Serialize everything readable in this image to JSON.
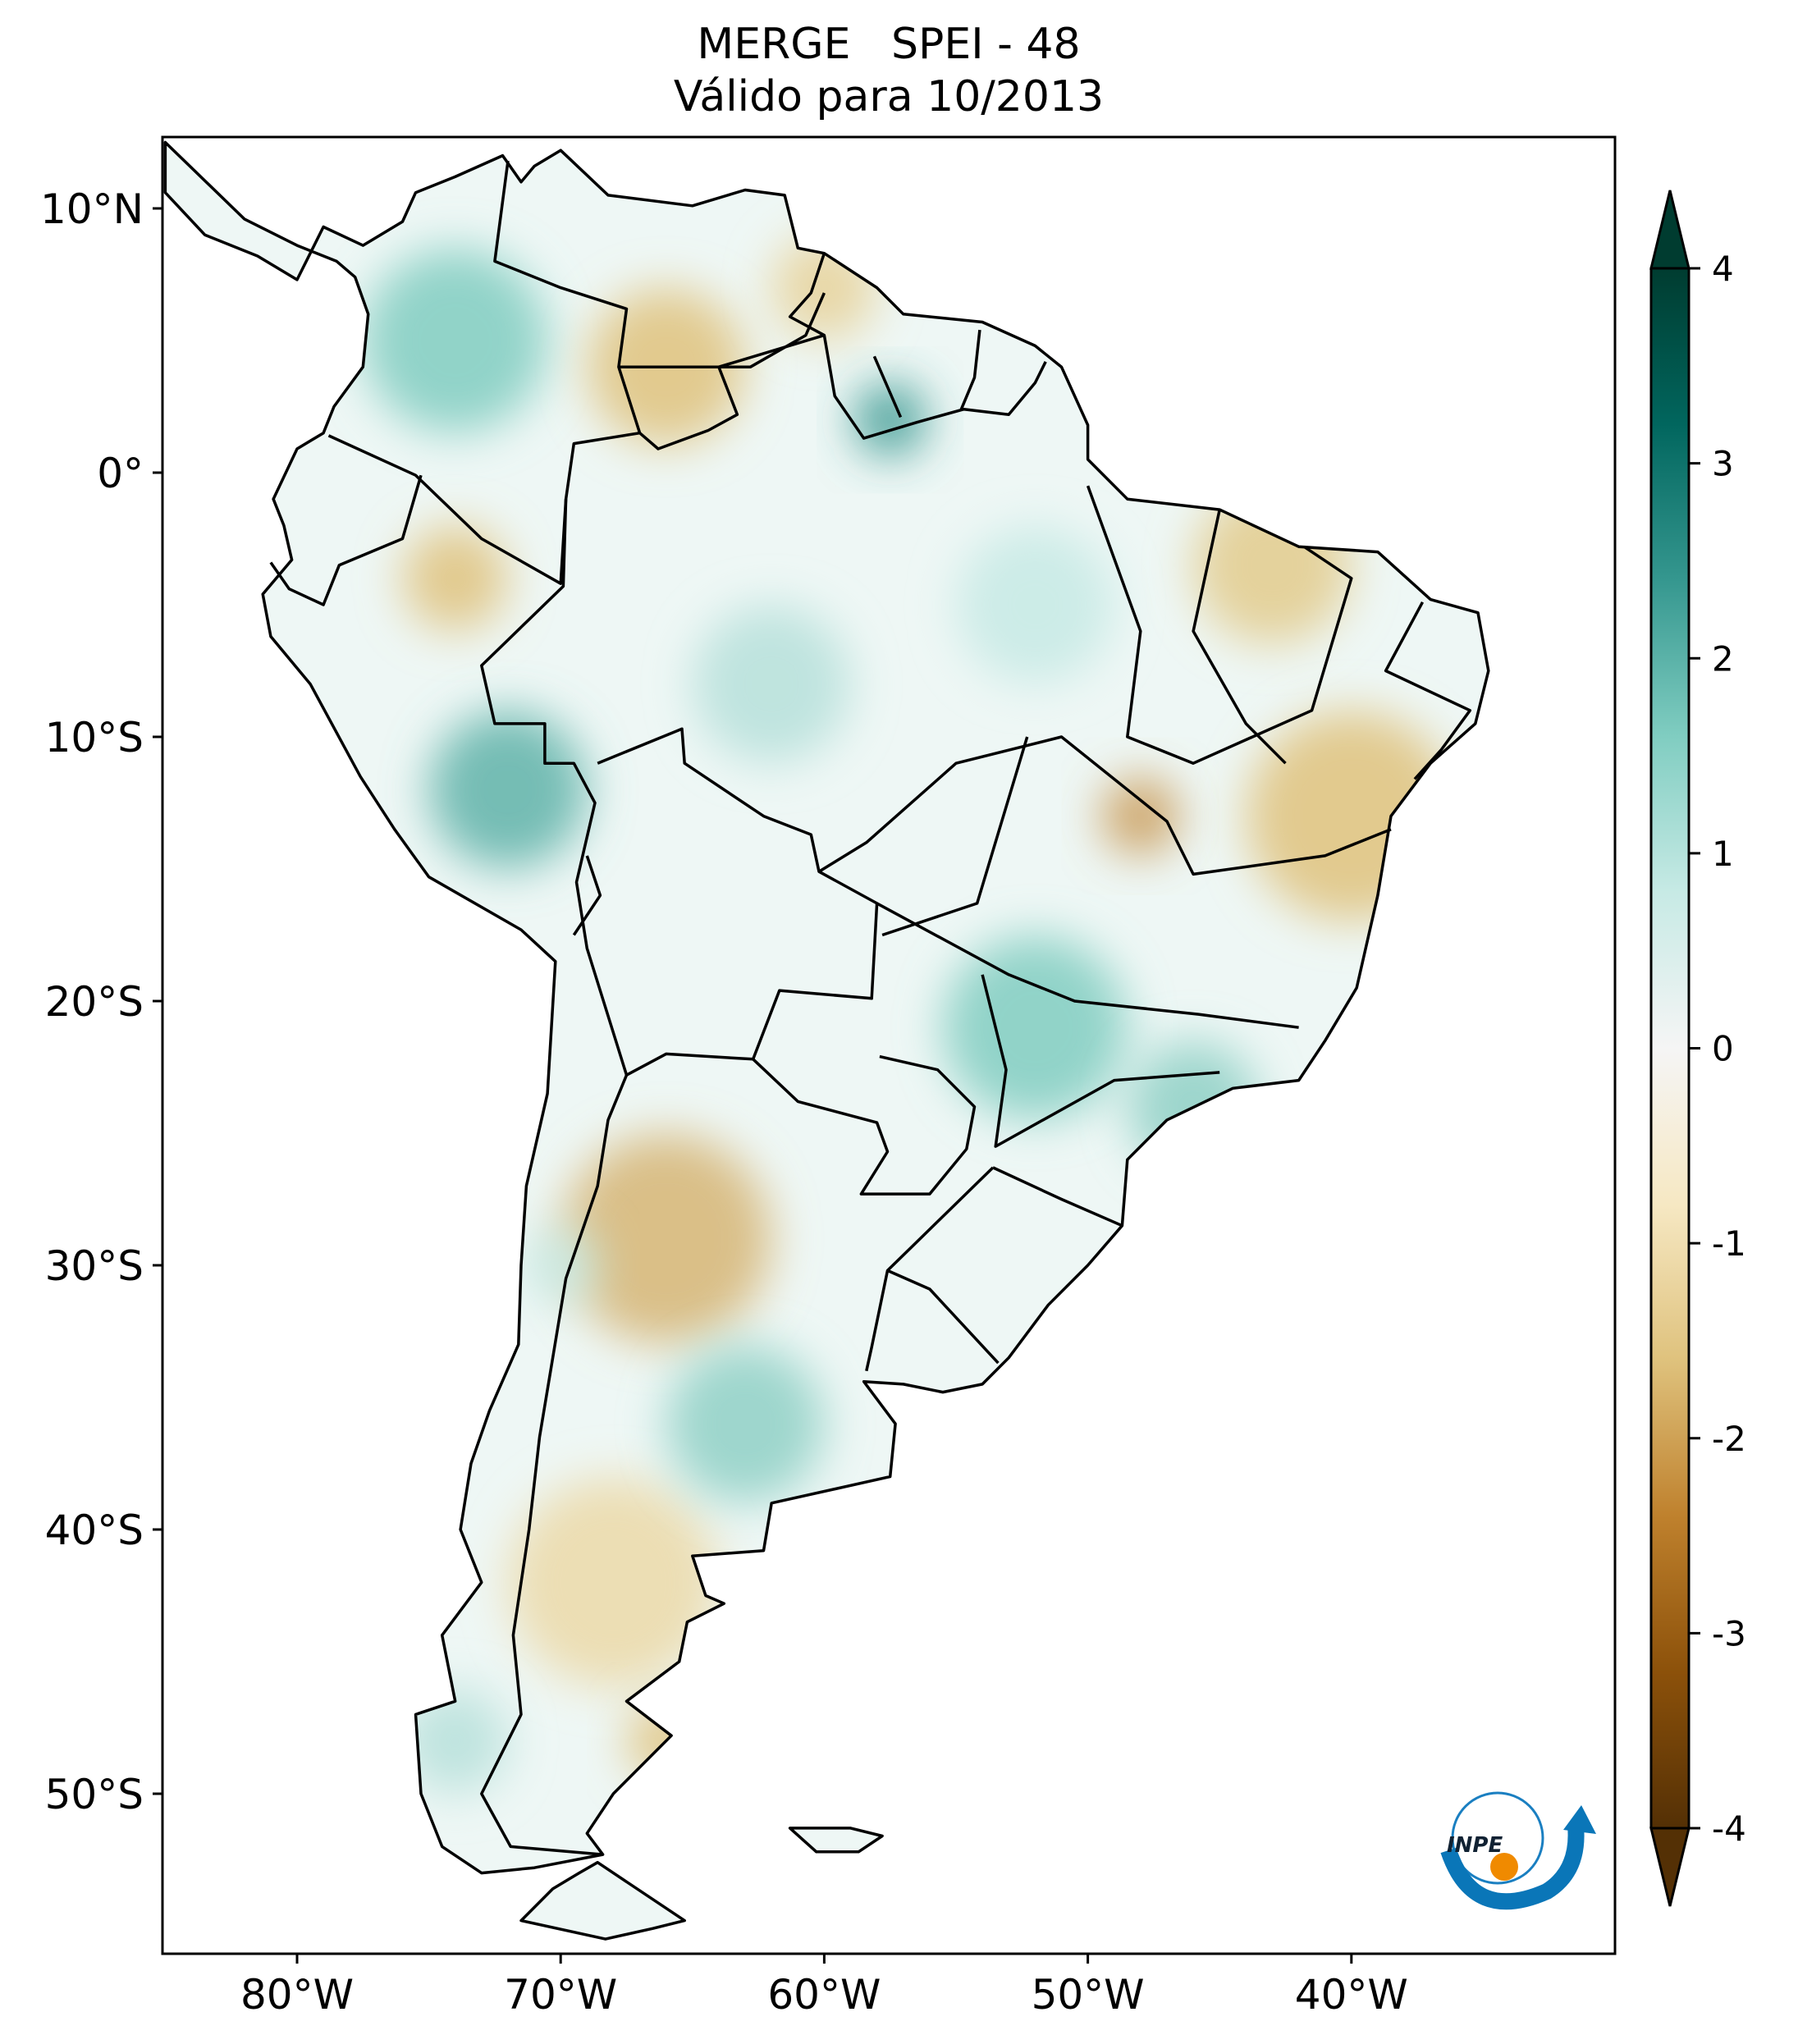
{
  "title": {
    "line1": "MERGE   SPEI - 48",
    "line2": "Válido para 10/2013"
  },
  "map": {
    "lon_ticks": [
      {
        "value": -80,
        "label": "80°W"
      },
      {
        "value": -70,
        "label": "70°W"
      },
      {
        "value": -60,
        "label": "60°W"
      },
      {
        "value": -50,
        "label": "50°W"
      },
      {
        "value": -40,
        "label": "40°W"
      }
    ],
    "lat_ticks": [
      {
        "value": 10,
        "label": "10°N"
      },
      {
        "value": 0,
        "label": "0°"
      },
      {
        "value": -10,
        "label": "10°S"
      },
      {
        "value": -20,
        "label": "20°S"
      },
      {
        "value": -30,
        "label": "30°S"
      },
      {
        "value": -40,
        "label": "40°S"
      },
      {
        "value": -50,
        "label": "50°S"
      }
    ],
    "extent": {
      "lon": [
        -85,
        -30
      ],
      "lat": [
        -56,
        13
      ]
    }
  },
  "colorbar": {
    "colormap": "BrBG",
    "range": [
      -4,
      4
    ],
    "extend": "both",
    "ticks": [
      {
        "value": 4,
        "label": "4"
      },
      {
        "value": 3,
        "label": "3"
      },
      {
        "value": 2,
        "label": "2"
      },
      {
        "value": 1,
        "label": "1"
      },
      {
        "value": 0,
        "label": "0"
      },
      {
        "value": -1,
        "label": "-1"
      },
      {
        "value": -2,
        "label": "-2"
      },
      {
        "value": -3,
        "label": "-3"
      },
      {
        "value": -4,
        "label": "-4"
      }
    ],
    "colors": [
      "#543005",
      "#8c510a",
      "#bf812d",
      "#dfc27d",
      "#f6e8c3",
      "#f5f5f5",
      "#c7eae5",
      "#80cdc1",
      "#35978f",
      "#01665e",
      "#003c30"
    ]
  },
  "logo": {
    "text": "INPE"
  }
}
